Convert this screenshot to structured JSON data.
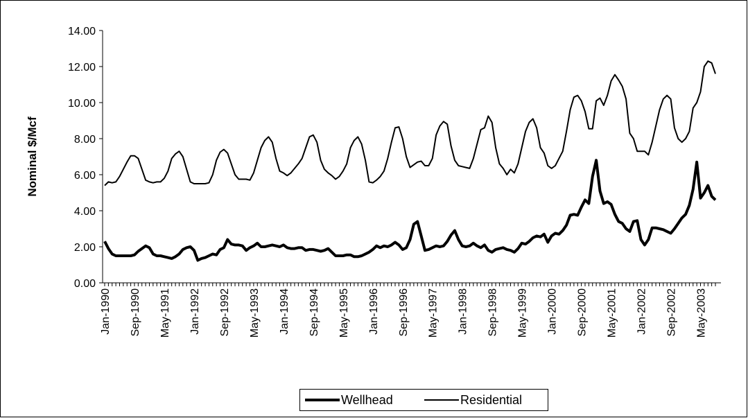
{
  "chart_data": {
    "type": "line",
    "y_label": "Nominal $/Mcf",
    "categories": [
      "Jan-1990",
      null,
      null,
      null,
      null,
      null,
      null,
      null,
      "Sep-1990",
      null,
      null,
      null,
      null,
      null,
      null,
      null,
      "May-1991",
      null,
      null,
      null,
      null,
      null,
      null,
      null,
      "Jan-1992",
      null,
      null,
      null,
      null,
      null,
      null,
      null,
      "Sep-1992",
      null,
      null,
      null,
      null,
      null,
      null,
      null,
      "May-1993",
      null,
      null,
      null,
      null,
      null,
      null,
      null,
      "Jan-1994",
      null,
      null,
      null,
      null,
      null,
      null,
      null,
      "Sep-1994",
      null,
      null,
      null,
      null,
      null,
      null,
      null,
      "May-1995",
      null,
      null,
      null,
      null,
      null,
      null,
      null,
      "Jan-1996",
      null,
      null,
      null,
      null,
      null,
      null,
      null,
      "Sep-1996",
      null,
      null,
      null,
      null,
      null,
      null,
      null,
      "May-1997",
      null,
      null,
      null,
      null,
      null,
      null,
      null,
      "Jan-1998",
      null,
      null,
      null,
      null,
      null,
      null,
      null,
      "Sep-1998",
      null,
      null,
      null,
      null,
      null,
      null,
      null,
      "May-1999",
      null,
      null,
      null,
      null,
      null,
      null,
      null,
      "Jan-2000",
      null,
      null,
      null,
      null,
      null,
      null,
      null,
      "Sep-2000",
      null,
      null,
      null,
      null,
      null,
      null,
      null,
      "May-2001",
      null,
      null,
      null,
      null,
      null,
      null,
      null,
      "Jan-2002",
      null,
      null,
      null,
      null,
      null,
      null,
      null,
      "Sep-2002",
      null,
      null,
      null,
      null,
      null,
      null,
      null,
      "May-2003",
      null,
      null,
      null,
      null
    ],
    "series": [
      {
        "name": "Wellhead",
        "color": "#000000",
        "width": 4,
        "values": [
          2.3,
          1.9,
          1.6,
          1.5,
          1.5,
          1.5,
          1.5,
          1.5,
          1.55,
          1.75,
          1.9,
          2.05,
          1.95,
          1.6,
          1.5,
          1.5,
          1.45,
          1.4,
          1.35,
          1.45,
          1.6,
          1.85,
          1.95,
          2.0,
          1.8,
          1.25,
          1.35,
          1.4,
          1.5,
          1.6,
          1.55,
          1.85,
          1.95,
          2.4,
          2.15,
          2.1,
          2.1,
          2.05,
          1.8,
          1.95,
          2.05,
          2.2,
          2.0,
          2.0,
          2.05,
          2.1,
          2.05,
          2.0,
          2.1,
          1.95,
          1.9,
          1.9,
          1.95,
          1.95,
          1.8,
          1.85,
          1.85,
          1.8,
          1.75,
          1.8,
          1.9,
          1.7,
          1.5,
          1.5,
          1.5,
          1.55,
          1.55,
          1.45,
          1.45,
          1.5,
          1.6,
          1.7,
          1.85,
          2.05,
          1.95,
          2.05,
          2.0,
          2.1,
          2.25,
          2.1,
          1.85,
          1.95,
          2.4,
          3.25,
          3.4,
          2.6,
          1.8,
          1.85,
          1.95,
          2.05,
          2.0,
          2.05,
          2.3,
          2.65,
          2.9,
          2.4,
          2.05,
          2.0,
          2.05,
          2.2,
          2.05,
          1.95,
          2.1,
          1.8,
          1.7,
          1.85,
          1.9,
          1.95,
          1.85,
          1.8,
          1.7,
          1.9,
          2.2,
          2.15,
          2.3,
          2.5,
          2.6,
          2.55,
          2.7,
          2.25,
          2.6,
          2.75,
          2.7,
          2.9,
          3.2,
          3.75,
          3.8,
          3.75,
          4.2,
          4.6,
          4.4,
          5.9,
          6.8,
          5.1,
          4.4,
          4.5,
          4.35,
          3.8,
          3.4,
          3.3,
          3.0,
          2.85,
          3.4,
          3.45,
          2.4,
          2.1,
          2.4,
          3.05,
          3.05,
          3.0,
          2.95,
          2.85,
          2.75,
          3.0,
          3.3,
          3.6,
          3.8,
          4.3,
          5.2,
          6.7,
          4.7,
          5.0,
          5.4,
          4.8,
          4.6
        ]
      },
      {
        "name": "Residential",
        "color": "#000000",
        "width": 2,
        "values": [
          5.4,
          5.6,
          5.55,
          5.6,
          5.9,
          6.3,
          6.7,
          7.05,
          7.05,
          6.9,
          6.3,
          5.7,
          5.6,
          5.55,
          5.6,
          5.6,
          5.8,
          6.2,
          6.9,
          7.15,
          7.3,
          7.0,
          6.3,
          5.6,
          5.5,
          5.5,
          5.5,
          5.5,
          5.55,
          6.0,
          6.8,
          7.25,
          7.4,
          7.2,
          6.6,
          6.0,
          5.75,
          5.75,
          5.75,
          5.7,
          6.1,
          6.8,
          7.5,
          7.9,
          8.1,
          7.8,
          6.9,
          6.2,
          6.1,
          5.95,
          6.1,
          6.35,
          6.6,
          6.9,
          7.5,
          8.1,
          8.2,
          7.8,
          6.8,
          6.3,
          6.1,
          5.95,
          5.75,
          5.9,
          6.2,
          6.6,
          7.5,
          7.9,
          8.1,
          7.7,
          6.8,
          5.6,
          5.55,
          5.7,
          5.9,
          6.2,
          6.9,
          7.8,
          8.6,
          8.65,
          8.0,
          7.0,
          6.4,
          6.55,
          6.7,
          6.75,
          6.5,
          6.5,
          6.9,
          8.2,
          8.7,
          8.95,
          8.8,
          7.6,
          6.8,
          6.5,
          6.45,
          6.4,
          6.35,
          6.9,
          7.7,
          8.5,
          8.6,
          9.25,
          8.9,
          7.5,
          6.6,
          6.35,
          6.0,
          6.3,
          6.1,
          6.6,
          7.5,
          8.4,
          8.9,
          9.1,
          8.6,
          7.5,
          7.2,
          6.5,
          6.35,
          6.5,
          6.9,
          7.3,
          8.4,
          9.6,
          10.3,
          10.4,
          10.1,
          9.5,
          8.55,
          8.55,
          10.1,
          10.25,
          9.85,
          10.4,
          11.2,
          11.55,
          11.25,
          10.9,
          10.2,
          8.3,
          8.0,
          7.3,
          7.3,
          7.3,
          7.1,
          7.8,
          8.7,
          9.6,
          10.2,
          10.4,
          10.2,
          8.6,
          8.0,
          7.8,
          8.0,
          8.4,
          9.7,
          10.0,
          10.6,
          12.0,
          12.3,
          12.2,
          11.6
        ]
      }
    ],
    "ylim": [
      0,
      14
    ],
    "yticks": [
      {
        "value": 0,
        "label": "0.00"
      },
      {
        "value": 2,
        "label": "2.00"
      },
      {
        "value": 4,
        "label": "4.00"
      },
      {
        "value": 6,
        "label": "6.00"
      },
      {
        "value": 8,
        "label": "8.00"
      },
      {
        "value": 10,
        "label": "10.00"
      },
      {
        "value": 12,
        "label": "12.00"
      },
      {
        "value": 14,
        "label": "14.00"
      }
    ],
    "legend": "bottom"
  }
}
